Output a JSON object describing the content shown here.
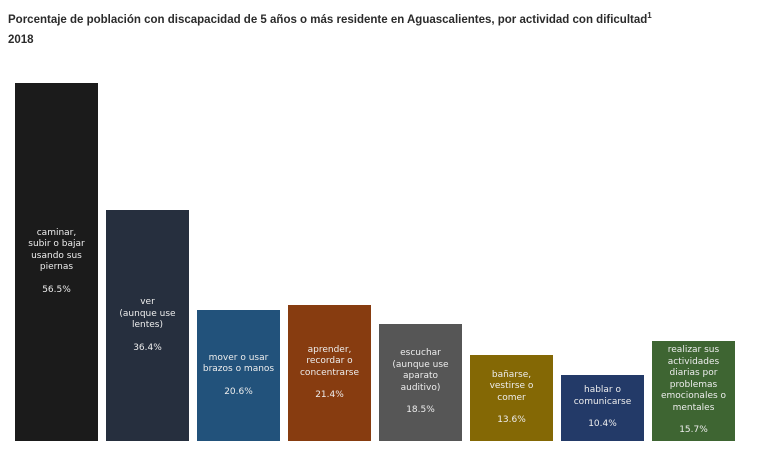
{
  "header": {
    "title": "Porcentaje de población con discapacidad de 5 años o más residente en Aguascalientes, por actividad con dificultad",
    "title_superscript": "1",
    "subtitle": "2018"
  },
  "chart_data": {
    "type": "bar",
    "title": "Porcentaje de población con discapacidad de 5 años o más residente en Aguascalientes, por actividad con dificultad",
    "subtitle": "2018",
    "unit": "%",
    "categories": [
      "caminar, subir o bajar usando sus piernas",
      "ver (aunque use lentes)",
      "mover o usar brazos o manos",
      "aprender, recordar o concentrarse",
      "escuchar (aunque use aparato auditivo)",
      "bañarse, vestirse o comer",
      "hablar o comunicarse",
      "realizar sus actividades diarias por problemas emocionales o mentales"
    ],
    "category_display_lines": [
      [
        "caminar,",
        "subir o bajar",
        "usando sus",
        "piernas"
      ],
      [
        "ver",
        "(aunque use",
        "lentes)"
      ],
      [
        "mover o usar",
        "brazos o manos"
      ],
      [
        "aprender,",
        "recordar o",
        "concentrarse"
      ],
      [
        "escuchar",
        "(aunque use",
        "aparato",
        "auditivo)"
      ],
      [
        "bañarse,",
        "vestirse o",
        "comer"
      ],
      [
        "hablar o",
        "comunicarse"
      ],
      [
        "realizar sus",
        "actividades",
        "diarias por",
        "problemas",
        "emocionales o",
        "mentales"
      ]
    ],
    "values": [
      56.5,
      36.4,
      20.6,
      21.4,
      18.5,
      13.6,
      10.4,
      15.7
    ],
    "value_labels": [
      "56.5%",
      "36.4%",
      "20.6%",
      "21.4%",
      "18.5%",
      "13.6%",
      "10.4%",
      "15.7%"
    ],
    "colors": [
      "#1b1b1b",
      "#262f3e",
      "#22527b",
      "#873c10",
      "#565656",
      "#846805",
      "#233a68",
      "#3e6532"
    ],
    "bar_text_color": "#ededed",
    "ylim": [
      0,
      60
    ],
    "grid": false,
    "legend": false,
    "axes_visible": false,
    "value_label_position": "inside-center"
  }
}
